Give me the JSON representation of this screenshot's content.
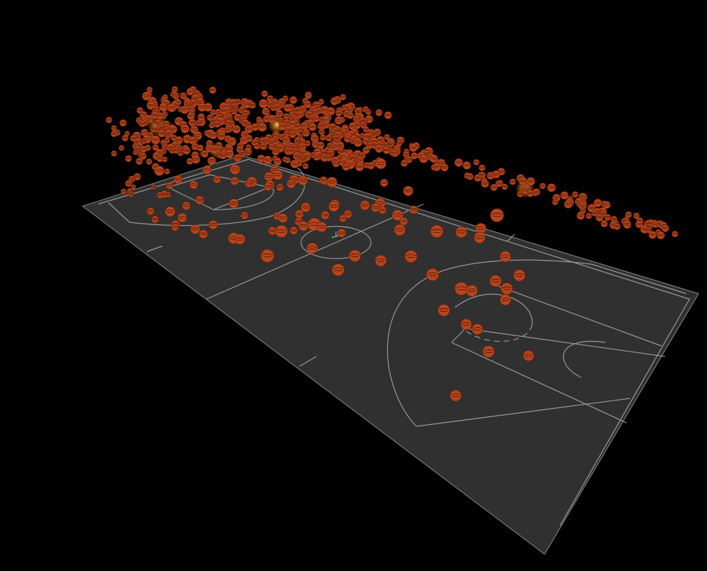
{
  "scene": {
    "background": "#000000",
    "court": {
      "floor_color": "#303030",
      "line_color": "#9a9a9a"
    },
    "ball": {
      "fill_color": "#b8441c",
      "seam_color": "#3a1608",
      "glow_color": "#ff9a20"
    },
    "axis_gizmo": {
      "x_color": "#e8c020",
      "y_color": "#3aa0ff",
      "z_color": "#40d060"
    }
  }
}
